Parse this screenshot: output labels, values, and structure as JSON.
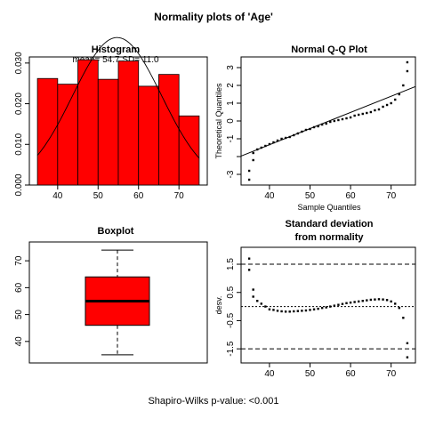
{
  "figure": {
    "title": "Normality plots of 'Age'",
    "footer": "Shapiro-Wilks p-value: <0.001"
  },
  "chart_data": [
    {
      "id": "histogram",
      "type": "bar",
      "title": "Histogram",
      "annotation": "mean= 54.7  SD= 11.0",
      "bins": [
        [
          35,
          40
        ],
        [
          40,
          45
        ],
        [
          45,
          50
        ],
        [
          50,
          55
        ],
        [
          55,
          60
        ],
        [
          60,
          65
        ],
        [
          65,
          70
        ],
        [
          70,
          75
        ]
      ],
      "values": [
        0.0262,
        0.0248,
        0.0308,
        0.026,
        0.0305,
        0.0243,
        0.0272,
        0.017
      ],
      "bar_color": "#ff0000",
      "curve": {
        "type": "normal-density",
        "mean": 54.7,
        "sd": 11.0
      },
      "xlim": [
        33,
        77
      ],
      "ylim": [
        0,
        0.0315
      ],
      "xticks": [
        "40",
        "50",
        "60",
        "70"
      ],
      "xtick_values": [
        40,
        50,
        60,
        70
      ],
      "yticks": [
        "0.000",
        "0.010",
        "0.020",
        "0.030"
      ],
      "ytick_values": [
        0,
        0.01,
        0.02,
        0.03
      ],
      "xlabel": "",
      "ylabel": ""
    },
    {
      "id": "qq",
      "type": "scatter",
      "title": "Normal Q-Q Plot",
      "xlabel": "Sample Quantiles",
      "ylabel": "Theoretical Quantiles",
      "xlim": [
        33,
        76
      ],
      "ylim": [
        -3.6,
        3.6
      ],
      "xticks": [
        "40",
        "50",
        "60",
        "70"
      ],
      "xtick_values": [
        40,
        50,
        60,
        70
      ],
      "yticks": [
        "-3",
        "-1",
        "0",
        "1",
        "2",
        "3"
      ],
      "ytick_values": [
        -3,
        -1,
        0,
        1,
        2,
        3
      ],
      "ytick_extra_marks": [
        -2
      ],
      "points": [
        [
          35,
          -3.3
        ],
        [
          35,
          -2.8
        ],
        [
          36,
          -2.2
        ],
        [
          36,
          -1.8
        ],
        [
          37,
          -1.6
        ],
        [
          38,
          -1.5
        ],
        [
          39,
          -1.4
        ],
        [
          40,
          -1.3
        ],
        [
          41,
          -1.2
        ],
        [
          42,
          -1.1
        ],
        [
          43,
          -1.0
        ],
        [
          44,
          -0.95
        ],
        [
          45,
          -0.9
        ],
        [
          46,
          -0.8
        ],
        [
          47,
          -0.7
        ],
        [
          48,
          -0.6
        ],
        [
          49,
          -0.5
        ],
        [
          50,
          -0.45
        ],
        [
          51,
          -0.35
        ],
        [
          52,
          -0.3
        ],
        [
          53,
          -0.2
        ],
        [
          54,
          -0.15
        ],
        [
          55,
          -0.05
        ],
        [
          56,
          0.0
        ],
        [
          57,
          0.05
        ],
        [
          58,
          0.1
        ],
        [
          59,
          0.15
        ],
        [
          60,
          0.2
        ],
        [
          61,
          0.3
        ],
        [
          62,
          0.35
        ],
        [
          63,
          0.4
        ],
        [
          64,
          0.45
        ],
        [
          65,
          0.5
        ],
        [
          66,
          0.6
        ],
        [
          67,
          0.65
        ],
        [
          68,
          0.8
        ],
        [
          69,
          0.9
        ],
        [
          70,
          1.0
        ],
        [
          71,
          1.2
        ],
        [
          72,
          1.5
        ],
        [
          73,
          2.0
        ],
        [
          74,
          2.8
        ],
        [
          74,
          3.3
        ]
      ],
      "refline": {
        "intercept": -4.973,
        "slope": 0.0909
      }
    },
    {
      "id": "boxplot",
      "type": "box",
      "title": "Boxplot",
      "min": 35,
      "q1": 46,
      "median": 55,
      "q3": 64,
      "max": 74,
      "box_color": "#ff0000",
      "ylim": [
        32,
        77
      ],
      "yticks": [
        "40",
        "50",
        "60",
        "70"
      ],
      "ytick_values": [
        40,
        50,
        60,
        70
      ],
      "xlabel": "",
      "ylabel": ""
    },
    {
      "id": "deviation",
      "type": "line",
      "title": "Standard deviation",
      "subtitle": "from normality",
      "ylabel": "desv.",
      "xlabel": "",
      "xlim": [
        33,
        76
      ],
      "ylim": [
        -2.0,
        2.1
      ],
      "xticks": [
        "40",
        "50",
        "60",
        "70"
      ],
      "xtick_values": [
        40,
        50,
        60,
        70
      ],
      "yticks": [
        "-1.5",
        "-0.5",
        "0.5",
        "1.5"
      ],
      "ytick_values": [
        -1.5,
        -0.5,
        0.5,
        1.5
      ],
      "hlines": [
        -1.5,
        0,
        1.5
      ],
      "points": [
        [
          35,
          1.7
        ],
        [
          35,
          1.3
        ],
        [
          36,
          0.6
        ],
        [
          36,
          0.35
        ],
        [
          37,
          0.2
        ],
        [
          38,
          0.1
        ],
        [
          39,
          0.0
        ],
        [
          40,
          -0.1
        ],
        [
          41,
          -0.12
        ],
        [
          42,
          -0.15
        ],
        [
          43,
          -0.17
        ],
        [
          44,
          -0.18
        ],
        [
          45,
          -0.18
        ],
        [
          46,
          -0.17
        ],
        [
          47,
          -0.16
        ],
        [
          48,
          -0.15
        ],
        [
          49,
          -0.14
        ],
        [
          50,
          -0.12
        ],
        [
          51,
          -0.1
        ],
        [
          52,
          -0.08
        ],
        [
          53,
          -0.05
        ],
        [
          54,
          -0.03
        ],
        [
          55,
          0.0
        ],
        [
          56,
          0.03
        ],
        [
          57,
          0.06
        ],
        [
          58,
          0.09
        ],
        [
          59,
          0.12
        ],
        [
          60,
          0.14
        ],
        [
          61,
          0.16
        ],
        [
          62,
          0.18
        ],
        [
          63,
          0.2
        ],
        [
          64,
          0.22
        ],
        [
          65,
          0.24
        ],
        [
          66,
          0.25
        ],
        [
          67,
          0.26
        ],
        [
          68,
          0.25
        ],
        [
          69,
          0.23
        ],
        [
          70,
          0.18
        ],
        [
          71,
          0.1
        ],
        [
          72,
          -0.05
        ],
        [
          73,
          -0.4
        ],
        [
          74,
          -1.3
        ],
        [
          74,
          -1.8
        ]
      ]
    }
  ]
}
